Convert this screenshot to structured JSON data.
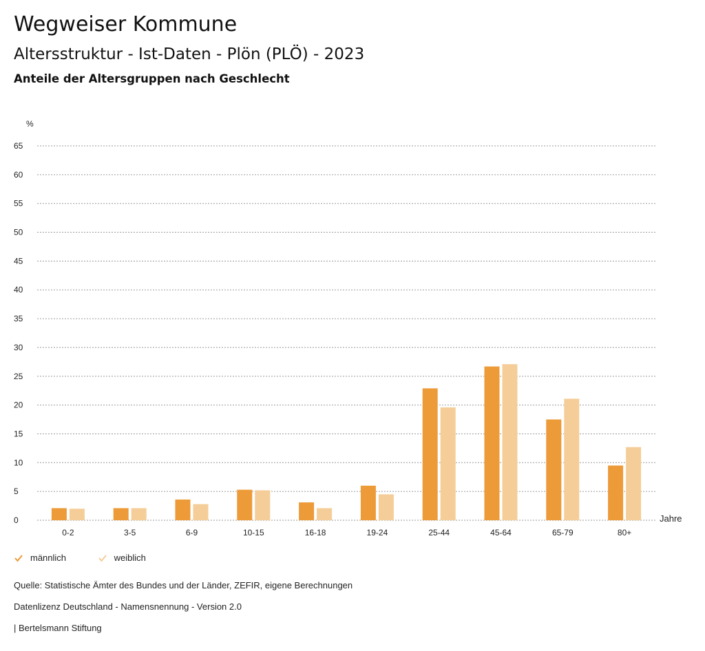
{
  "header": {
    "title": "Wegweiser Kommune",
    "subtitle": "Altersstruktur - Ist-Daten - Plön (PLÖ) - 2023",
    "subsubtitle": "Anteile der Altersgruppen nach Geschlecht"
  },
  "colors": {
    "male": "#ED9A38",
    "female": "#F5CD98",
    "grid": "#9a9a9a",
    "text": "#222222"
  },
  "chart_data": {
    "type": "bar",
    "title": "Anteile der Altersgruppen nach Geschlecht",
    "ylabel": "%",
    "xlabel": "Jahre",
    "ylim": [
      0,
      65
    ],
    "yticks": [
      0,
      5,
      10,
      15,
      20,
      25,
      30,
      35,
      40,
      45,
      50,
      55,
      60,
      65
    ],
    "grid": true,
    "legend_position": "bottom-left",
    "categories": [
      "0-2",
      "3-5",
      "6-9",
      "10-15",
      "16-18",
      "19-24",
      "25-44",
      "45-64",
      "65-79",
      "80+"
    ],
    "series": [
      {
        "name": "männlich",
        "values": [
          2.1,
          2.1,
          3.6,
          5.3,
          3.1,
          6.0,
          22.9,
          26.7,
          17.5,
          9.5
        ]
      },
      {
        "name": "weiblich",
        "values": [
          2.0,
          2.1,
          2.8,
          5.2,
          2.1,
          4.5,
          19.6,
          27.1,
          21.1,
          12.7
        ]
      }
    ]
  },
  "legend": {
    "male_label": "männlich",
    "female_label": "weiblich"
  },
  "footer": {
    "source": "Quelle: Statistische Ämter des Bundes und der Länder, ZEFIR, eigene Berechnungen",
    "license": "Datenlizenz Deutschland - Namensnennung - Version 2.0",
    "publisher": "| Bertelsmann Stiftung"
  }
}
